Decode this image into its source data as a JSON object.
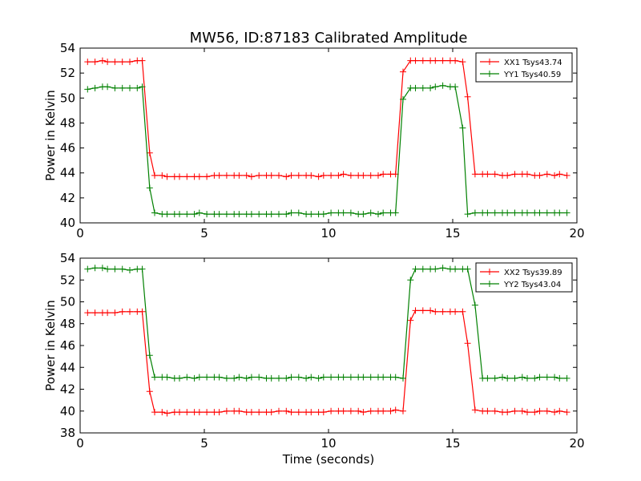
{
  "chart_data": [
    {
      "type": "line",
      "title": "MW56, ID:87183 Calibrated Amplitude",
      "xlabel": "",
      "ylabel": "Power in Kelvin",
      "xlim": [
        0,
        20
      ],
      "ylim": [
        40,
        54
      ],
      "xticks": [
        0,
        5,
        10,
        15,
        20
      ],
      "yticks": [
        40,
        42,
        44,
        46,
        48,
        50,
        52,
        54
      ],
      "legend_position": "top-right",
      "x": [
        0.3,
        0.6,
        0.9,
        1.1,
        1.4,
        1.7,
        2.0,
        2.3,
        2.5,
        2.8,
        3.0,
        3.3,
        3.5,
        3.8,
        4.0,
        4.3,
        4.6,
        4.8,
        5.1,
        5.4,
        5.6,
        5.9,
        6.2,
        6.4,
        6.7,
        6.9,
        7.2,
        7.5,
        7.7,
        8.0,
        8.3,
        8.5,
        8.8,
        9.1,
        9.3,
        9.6,
        9.8,
        10.1,
        10.4,
        10.6,
        10.9,
        11.2,
        11.4,
        11.7,
        12.0,
        12.2,
        12.5,
        12.7,
        13.0,
        13.3,
        13.5,
        13.8,
        14.1,
        14.3,
        14.6,
        14.9,
        15.1,
        15.4,
        15.6,
        15.9,
        16.2,
        16.4,
        16.7,
        17.0,
        17.2,
        17.5,
        17.8,
        18.0,
        18.3,
        18.5,
        18.8,
        19.1,
        19.3,
        19.6
      ],
      "series": [
        {
          "name": "XX1 Tsys43.74",
          "color": "#ff0000",
          "values": [
            52.9,
            52.9,
            53.0,
            52.9,
            52.9,
            52.9,
            52.9,
            53.0,
            53.0,
            45.6,
            43.8,
            43.8,
            43.7,
            43.7,
            43.7,
            43.7,
            43.7,
            43.7,
            43.7,
            43.8,
            43.8,
            43.8,
            43.8,
            43.8,
            43.8,
            43.7,
            43.8,
            43.8,
            43.8,
            43.8,
            43.7,
            43.8,
            43.8,
            43.8,
            43.8,
            43.7,
            43.8,
            43.8,
            43.8,
            43.9,
            43.8,
            43.8,
            43.8,
            43.8,
            43.8,
            43.9,
            43.9,
            43.9,
            52.1,
            53.0,
            53.0,
            53.0,
            53.0,
            53.0,
            53.0,
            53.0,
            53.0,
            52.9,
            50.1,
            43.9,
            43.9,
            43.9,
            43.9,
            43.8,
            43.8,
            43.9,
            43.9,
            43.9,
            43.8,
            43.8,
            43.9,
            43.8,
            43.9,
            43.8
          ]
        },
        {
          "name": "YY1 Tsys40.59",
          "color": "#008000",
          "values": [
            50.7,
            50.8,
            50.9,
            50.9,
            50.8,
            50.8,
            50.8,
            50.8,
            50.9,
            42.8,
            40.8,
            40.7,
            40.7,
            40.7,
            40.7,
            40.7,
            40.7,
            40.8,
            40.7,
            40.7,
            40.7,
            40.7,
            40.7,
            40.7,
            40.7,
            40.7,
            40.7,
            40.7,
            40.7,
            40.7,
            40.7,
            40.8,
            40.8,
            40.7,
            40.7,
            40.7,
            40.7,
            40.8,
            40.8,
            40.8,
            40.8,
            40.7,
            40.7,
            40.8,
            40.7,
            40.8,
            40.8,
            40.8,
            49.9,
            50.8,
            50.8,
            50.8,
            50.8,
            50.9,
            51.0,
            50.9,
            50.9,
            47.6,
            40.7,
            40.8,
            40.8,
            40.8,
            40.8,
            40.8,
            40.8,
            40.8,
            40.8,
            40.8,
            40.8,
            40.8,
            40.8,
            40.8,
            40.8,
            40.8
          ]
        }
      ]
    },
    {
      "type": "line",
      "title": "",
      "xlabel": "Time (seconds)",
      "ylabel": "Power in Kelvin",
      "xlim": [
        0,
        20
      ],
      "ylim": [
        38,
        54
      ],
      "xticks": [
        0,
        5,
        10,
        15,
        20
      ],
      "yticks": [
        38,
        40,
        42,
        44,
        46,
        48,
        50,
        52,
        54
      ],
      "legend_position": "top-right",
      "x": [
        0.3,
        0.6,
        0.9,
        1.1,
        1.4,
        1.7,
        2.0,
        2.3,
        2.5,
        2.8,
        3.0,
        3.3,
        3.5,
        3.8,
        4.0,
        4.3,
        4.6,
        4.8,
        5.1,
        5.4,
        5.6,
        5.9,
        6.2,
        6.4,
        6.7,
        6.9,
        7.2,
        7.5,
        7.7,
        8.0,
        8.3,
        8.5,
        8.8,
        9.1,
        9.3,
        9.6,
        9.8,
        10.1,
        10.4,
        10.6,
        10.9,
        11.2,
        11.4,
        11.7,
        12.0,
        12.2,
        12.5,
        12.7,
        13.0,
        13.3,
        13.5,
        13.8,
        14.1,
        14.3,
        14.6,
        14.9,
        15.1,
        15.4,
        15.6,
        15.9,
        16.2,
        16.4,
        16.7,
        17.0,
        17.2,
        17.5,
        17.8,
        18.0,
        18.3,
        18.5,
        18.8,
        19.1,
        19.3,
        19.6
      ],
      "series": [
        {
          "name": "XX2 Tsys39.89",
          "color": "#ff0000",
          "values": [
            49.0,
            49.0,
            49.0,
            49.0,
            49.0,
            49.1,
            49.1,
            49.1,
            49.1,
            41.8,
            39.9,
            39.9,
            39.8,
            39.9,
            39.9,
            39.9,
            39.9,
            39.9,
            39.9,
            39.9,
            39.9,
            40.0,
            40.0,
            40.0,
            39.9,
            39.9,
            39.9,
            39.9,
            39.9,
            40.0,
            40.0,
            39.9,
            39.9,
            39.9,
            39.9,
            39.9,
            39.9,
            40.0,
            40.0,
            40.0,
            40.0,
            40.0,
            39.9,
            40.0,
            40.0,
            40.0,
            40.0,
            40.1,
            40.0,
            48.3,
            49.2,
            49.2,
            49.2,
            49.1,
            49.1,
            49.1,
            49.1,
            49.1,
            46.2,
            40.1,
            40.0,
            40.0,
            40.0,
            39.9,
            39.9,
            40.0,
            40.0,
            39.9,
            39.9,
            40.0,
            40.0,
            39.9,
            40.0,
            39.9
          ]
        },
        {
          "name": "YY2 Tsys43.04",
          "color": "#008000",
          "values": [
            53.0,
            53.1,
            53.1,
            53.0,
            53.0,
            53.0,
            52.9,
            53.0,
            53.0,
            45.1,
            43.1,
            43.1,
            43.1,
            43.0,
            43.0,
            43.1,
            43.0,
            43.1,
            43.1,
            43.1,
            43.1,
            43.0,
            43.0,
            43.1,
            43.0,
            43.1,
            43.1,
            43.0,
            43.0,
            43.0,
            43.0,
            43.1,
            43.1,
            43.0,
            43.1,
            43.0,
            43.1,
            43.1,
            43.1,
            43.1,
            43.1,
            43.1,
            43.1,
            43.1,
            43.1,
            43.1,
            43.1,
            43.1,
            43.0,
            52.0,
            53.0,
            53.0,
            53.0,
            53.0,
            53.1,
            53.0,
            53.0,
            53.0,
            53.0,
            49.7,
            43.0,
            43.0,
            43.0,
            43.1,
            43.0,
            43.0,
            43.1,
            43.0,
            43.0,
            43.1,
            43.1,
            43.1,
            43.0,
            43.0
          ]
        }
      ]
    }
  ]
}
